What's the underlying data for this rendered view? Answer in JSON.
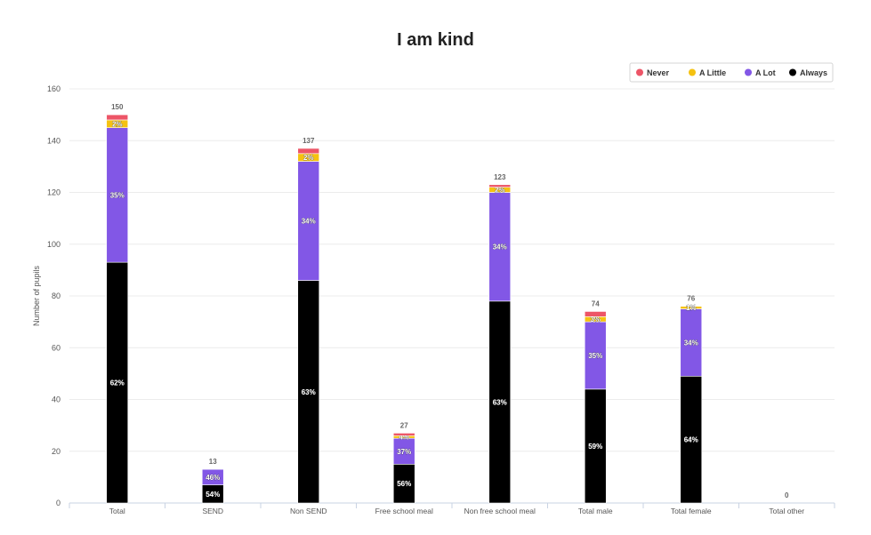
{
  "chart_data": {
    "type": "bar",
    "stacked": true,
    "title": "I am kind",
    "xlabel": "",
    "ylabel": "Number of pupils",
    "ylim": [
      0,
      160
    ],
    "yticks": [
      0,
      20,
      40,
      60,
      80,
      100,
      120,
      140,
      160
    ],
    "grid": true,
    "legend_position": "top-right",
    "categories": [
      "Total",
      "SEND",
      "Non SEND",
      "Free school meal",
      "Non free school meal",
      "Total male",
      "Total female",
      "Total other"
    ],
    "totals": [
      150,
      13,
      137,
      27,
      123,
      74,
      76,
      0
    ],
    "series": [
      {
        "name": "Always",
        "color": "#000000",
        "values": [
          93,
          7,
          86,
          15,
          78,
          44,
          49,
          0
        ],
        "labels": [
          "62%",
          "54%",
          "63%",
          "56%",
          "63%",
          "59%",
          "64%",
          ""
        ]
      },
      {
        "name": "A Lot",
        "color": "#8257e6",
        "values": [
          52,
          6,
          46,
          10,
          42,
          26,
          26,
          0
        ],
        "labels": [
          "35%",
          "46%",
          "34%",
          "37%",
          "34%",
          "35%",
          "34%",
          ""
        ]
      },
      {
        "name": "A Little",
        "color": "#f5c211",
        "values": [
          3,
          0,
          3,
          1,
          2,
          2,
          1,
          0
        ],
        "labels": [
          "2%",
          "",
          "2%",
          "4%",
          "2%",
          "3%",
          "1%",
          ""
        ]
      },
      {
        "name": "Never",
        "color": "#ed5567",
        "values": [
          2,
          0,
          2,
          1,
          1,
          2,
          0,
          0
        ],
        "labels": [
          "",
          "",
          "",
          "",
          "",
          "",
          "",
          ""
        ]
      }
    ],
    "legend_order": [
      "Never",
      "A Little",
      "A Lot",
      "Always"
    ]
  }
}
